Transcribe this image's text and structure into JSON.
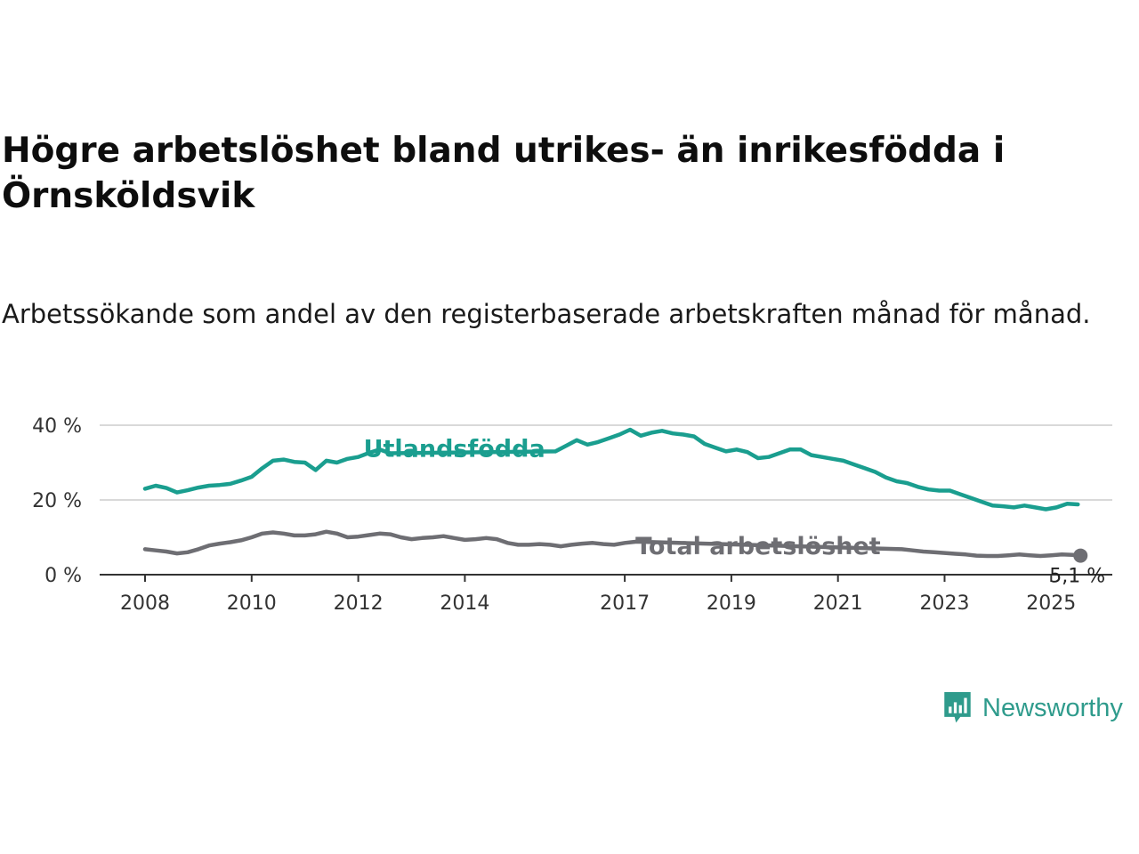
{
  "header": {
    "title": "Högre arbetslöshet bland utrikes- än inrikesfödda i Örnsköldsvik",
    "subtitle": "Arbetssökande som andel av den registerbaserade arbetskraften månad för månad."
  },
  "brand": {
    "name": "Newsworthy",
    "icon": "newsworthy-logo-icon",
    "color": "#2f9b8c"
  },
  "chart_data": {
    "type": "line",
    "title": "Högre arbetslöshet bland utrikes- än inrikesfödda i Örnsköldsvik",
    "subtitle": "Arbetssökande som andel av den registerbaserade arbetskraften månad för månad.",
    "xlabel": "",
    "ylabel": "",
    "x_ticks": [
      "2008",
      "2010",
      "2012",
      "2014",
      "2017",
      "2019",
      "2021",
      "2023",
      "2025"
    ],
    "y_ticks": [
      "0 %",
      "20 %",
      "40 %"
    ],
    "ylim": [
      0,
      40
    ],
    "xlim": [
      2007.9,
      2025.3
    ],
    "grid": "horizontal",
    "legend": "inline labels",
    "series": [
      {
        "name": "Utlandsfödda",
        "color": "#1a9e8f",
        "points": [
          [
            2008.0,
            23.0
          ],
          [
            2008.2,
            23.8
          ],
          [
            2008.4,
            23.2
          ],
          [
            2008.6,
            22.0
          ],
          [
            2008.8,
            22.6
          ],
          [
            2009.0,
            23.3
          ],
          [
            2009.2,
            23.8
          ],
          [
            2009.4,
            24.0
          ],
          [
            2009.6,
            24.3
          ],
          [
            2009.8,
            25.2
          ],
          [
            2010.0,
            26.2
          ],
          [
            2010.2,
            28.5
          ],
          [
            2010.4,
            30.5
          ],
          [
            2010.6,
            30.8
          ],
          [
            2010.8,
            30.2
          ],
          [
            2011.0,
            30.0
          ],
          [
            2011.2,
            28.0
          ],
          [
            2011.4,
            30.5
          ],
          [
            2011.6,
            30.0
          ],
          [
            2011.8,
            31.0
          ],
          [
            2012.0,
            31.5
          ],
          [
            2012.2,
            32.6
          ],
          [
            2012.4,
            33.5
          ],
          [
            2012.6,
            32.5
          ],
          [
            2015.7,
            33.0
          ],
          [
            2015.9,
            34.5
          ],
          [
            2016.1,
            36.0
          ],
          [
            2016.3,
            34.8
          ],
          [
            2016.5,
            35.5
          ],
          [
            2016.7,
            36.5
          ],
          [
            2016.9,
            37.5
          ],
          [
            2017.1,
            38.8
          ],
          [
            2017.3,
            37.2
          ],
          [
            2017.5,
            38.0
          ],
          [
            2017.7,
            38.5
          ],
          [
            2017.9,
            37.8
          ],
          [
            2018.1,
            37.5
          ],
          [
            2018.3,
            37.0
          ],
          [
            2018.5,
            35.0
          ],
          [
            2018.7,
            34.0
          ],
          [
            2018.9,
            33.0
          ],
          [
            2019.1,
            33.5
          ],
          [
            2019.3,
            32.8
          ],
          [
            2019.5,
            31.2
          ],
          [
            2019.7,
            31.5
          ],
          [
            2019.9,
            32.5
          ],
          [
            2020.1,
            33.5
          ],
          [
            2020.3,
            33.5
          ],
          [
            2020.5,
            32.0
          ],
          [
            2020.7,
            31.5
          ],
          [
            2020.9,
            31.0
          ],
          [
            2021.1,
            30.5
          ],
          [
            2021.3,
            29.5
          ],
          [
            2021.5,
            28.5
          ],
          [
            2021.7,
            27.5
          ],
          [
            2021.9,
            26.0
          ],
          [
            2022.1,
            25.0
          ],
          [
            2022.3,
            24.5
          ],
          [
            2022.5,
            23.5
          ],
          [
            2022.7,
            22.8
          ],
          [
            2022.9,
            22.5
          ],
          [
            2023.1,
            22.5
          ],
          [
            2023.3,
            21.5
          ],
          [
            2023.5,
            20.5
          ],
          [
            2023.7,
            19.5
          ],
          [
            2023.9,
            18.5
          ],
          [
            2024.1,
            18.3
          ],
          [
            2024.3,
            18.0
          ],
          [
            2024.5,
            18.5
          ],
          [
            2024.7,
            18.0
          ],
          [
            2024.9,
            17.5
          ],
          [
            2025.1,
            18.0
          ],
          [
            2025.3,
            19.0
          ],
          [
            2025.5,
            18.8
          ]
        ]
      },
      {
        "name": "Total arbetslöshet",
        "color": "#6e6e73",
        "points": [
          [
            2008.0,
            6.8
          ],
          [
            2008.2,
            6.5
          ],
          [
            2008.4,
            6.2
          ],
          [
            2008.6,
            5.7
          ],
          [
            2008.8,
            6.0
          ],
          [
            2009.0,
            6.8
          ],
          [
            2009.2,
            7.8
          ],
          [
            2009.4,
            8.3
          ],
          [
            2009.6,
            8.7
          ],
          [
            2009.8,
            9.2
          ],
          [
            2010.0,
            10.0
          ],
          [
            2010.2,
            11.0
          ],
          [
            2010.4,
            11.3
          ],
          [
            2010.6,
            11.0
          ],
          [
            2010.8,
            10.5
          ],
          [
            2011.0,
            10.5
          ],
          [
            2011.2,
            10.8
          ],
          [
            2011.4,
            11.5
          ],
          [
            2011.6,
            11.0
          ],
          [
            2011.8,
            10.0
          ],
          [
            2012.0,
            10.2
          ],
          [
            2012.2,
            10.6
          ],
          [
            2012.4,
            11.0
          ],
          [
            2012.6,
            10.8
          ],
          [
            2012.8,
            10.0
          ],
          [
            2013.0,
            9.5
          ],
          [
            2013.2,
            9.8
          ],
          [
            2013.4,
            10.0
          ],
          [
            2013.6,
            10.3
          ],
          [
            2013.8,
            9.8
          ],
          [
            2014.0,
            9.3
          ],
          [
            2014.2,
            9.5
          ],
          [
            2014.4,
            9.8
          ],
          [
            2014.6,
            9.5
          ],
          [
            2014.8,
            8.5
          ],
          [
            2015.0,
            8.0
          ],
          [
            2015.2,
            8.0
          ],
          [
            2015.4,
            8.2
          ],
          [
            2015.6,
            8.0
          ],
          [
            2015.8,
            7.6
          ],
          [
            2016.0,
            8.0
          ],
          [
            2016.2,
            8.3
          ],
          [
            2016.4,
            8.5
          ],
          [
            2016.6,
            8.2
          ],
          [
            2016.8,
            8.0
          ],
          [
            2017.0,
            8.5
          ],
          [
            2017.2,
            8.8
          ],
          [
            2017.3,
            8.8
          ],
          [
            2022.2,
            6.8
          ],
          [
            2022.4,
            6.5
          ],
          [
            2022.6,
            6.2
          ],
          [
            2022.8,
            6.0
          ],
          [
            2023.0,
            5.8
          ],
          [
            2023.2,
            5.6
          ],
          [
            2023.4,
            5.4
          ],
          [
            2023.6,
            5.1
          ],
          [
            2023.8,
            5.0
          ],
          [
            2024.0,
            5.0
          ],
          [
            2024.2,
            5.2
          ],
          [
            2024.4,
            5.4
          ],
          [
            2024.6,
            5.2
          ],
          [
            2024.8,
            5.0
          ],
          [
            2025.0,
            5.2
          ],
          [
            2025.2,
            5.4
          ],
          [
            2025.4,
            5.3
          ],
          [
            2025.55,
            5.1
          ]
        ]
      }
    ],
    "end_value": {
      "x": 2025.55,
      "y": 5.1,
      "label": "5,1 %"
    }
  }
}
